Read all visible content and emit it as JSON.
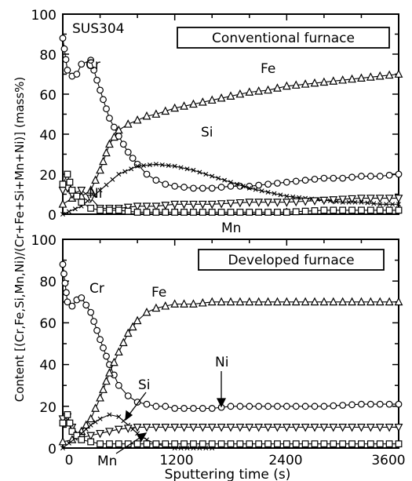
{
  "chart_data": [
    {
      "type": "line",
      "sample_label": "SUS304",
      "title": "Conventional furnace",
      "xlabel": "",
      "ylabel": "Content [(Cr,Fe,Si,Mn,Ni)/(Cr+Fe+Si+Mn+Ni)] (mass%)",
      "xlim": [
        0,
        3600
      ],
      "ylim": [
        0,
        100
      ],
      "yticks": [
        "0",
        "20",
        "40",
        "60",
        "80",
        "100"
      ],
      "series": [
        {
          "name": "Cr",
          "marker": "circle",
          "x": [
            0,
            50,
            100,
            150,
            200,
            300,
            400,
            500,
            600,
            700,
            800,
            900,
            1000,
            1100,
            1200,
            1400,
            1600,
            1800,
            2000,
            2200,
            2400,
            2600,
            2800,
            3000,
            3200,
            3400,
            3600
          ],
          "values": [
            88,
            72,
            69,
            70,
            75,
            77,
            62,
            48,
            39,
            31,
            25,
            20,
            17,
            15,
            14,
            13,
            13,
            14,
            14,
            15,
            16,
            17,
            18,
            18,
            19,
            19,
            20
          ]
        },
        {
          "name": "Fe",
          "marker": "triangle",
          "x": [
            0,
            100,
            200,
            300,
            400,
            500,
            600,
            700,
            800,
            900,
            1000,
            1200,
            1400,
            1600,
            1800,
            2000,
            2200,
            2400,
            2600,
            2800,
            3000,
            3200,
            3400,
            3600
          ],
          "values": [
            5,
            8,
            9,
            12,
            22,
            35,
            42,
            45,
            47,
            49,
            50,
            53,
            55,
            57,
            59,
            61,
            62,
            64,
            65,
            66,
            67,
            68,
            69,
            70
          ]
        },
        {
          "name": "Si",
          "marker": "cross",
          "x": [
            0,
            200,
            400,
            600,
            800,
            1000,
            1200,
            1400,
            1600,
            1800,
            2000,
            2200,
            2400,
            2600,
            2800,
            3000,
            3200,
            3400,
            3600
          ],
          "values": [
            0,
            4,
            12,
            20,
            24,
            25,
            24,
            22,
            19,
            16,
            13,
            11,
            9,
            8,
            7,
            6,
            6,
            5,
            5
          ]
        },
        {
          "name": "Ni",
          "marker": "inverted-triangle",
          "x": [
            0,
            50,
            100,
            200,
            300,
            400,
            600,
            800,
            1000,
            1200,
            1600,
            2000,
            2400,
            2800,
            3200,
            3600
          ],
          "values": [
            12,
            13,
            10,
            12,
            8,
            3,
            3,
            4,
            4,
            5,
            5,
            6,
            6,
            7,
            8,
            8
          ]
        },
        {
          "name": "Mn",
          "marker": "square",
          "x": [
            0,
            50,
            100,
            150,
            200,
            300,
            400,
            600,
            800,
            1000,
            1200,
            1600,
            2000,
            2400,
            2800,
            3200,
            3600
          ],
          "values": [
            15,
            20,
            12,
            9,
            6,
            3,
            2,
            2,
            1,
            1,
            1,
            1,
            1,
            1,
            2,
            2,
            2
          ]
        }
      ],
      "annotations": [
        "Cr",
        "Fe",
        "Si",
        "Ni",
        "Mn"
      ]
    },
    {
      "type": "line",
      "title": "Developed furnace",
      "xlabel": "Sputtering time (s)",
      "ylabel": "",
      "xlim": [
        0,
        3600
      ],
      "ylim": [
        0,
        100
      ],
      "xticks": [
        "0",
        "1200",
        "2400",
        "3600"
      ],
      "yticks": [
        "0",
        "20",
        "40",
        "60",
        "80",
        "100"
      ],
      "series": [
        {
          "name": "Cr",
          "marker": "circle",
          "x": [
            0,
            50,
            100,
            150,
            200,
            300,
            400,
            500,
            600,
            700,
            800,
            900,
            1000,
            1100,
            1200,
            1400,
            1600,
            1800,
            2000,
            2400,
            2800,
            3200,
            3600
          ],
          "values": [
            88,
            70,
            68,
            71,
            72,
            65,
            52,
            40,
            30,
            25,
            22,
            21,
            20,
            20,
            19,
            19,
            19,
            20,
            20,
            20,
            20,
            21,
            21
          ]
        },
        {
          "name": "Fe",
          "marker": "triangle",
          "x": [
            0,
            100,
            200,
            300,
            400,
            500,
            600,
            700,
            800,
            900,
            1000,
            1100,
            1200,
            1400,
            1600,
            1800,
            2000,
            2400,
            2800,
            3200,
            3600
          ],
          "values": [
            3,
            4,
            8,
            14,
            24,
            36,
            46,
            55,
            61,
            65,
            67,
            68,
            69,
            69,
            70,
            70,
            70,
            70,
            70,
            70,
            70
          ]
        },
        {
          "name": "Si",
          "marker": "cross",
          "x": [
            0,
            200,
            300,
            400,
            500,
            600,
            700,
            800,
            900,
            1000,
            1100,
            1200,
            1400,
            1600
          ],
          "values": [
            0,
            7,
            11,
            14,
            16,
            15,
            11,
            7,
            4,
            2,
            1,
            0,
            0,
            0
          ]
        },
        {
          "name": "Ni",
          "marker": "inverted-triangle",
          "x": [
            0,
            50,
            100,
            200,
            300,
            400,
            500,
            600,
            800,
            1000,
            1200,
            1600,
            2000,
            2400,
            2800,
            3200,
            3600
          ],
          "values": [
            14,
            15,
            10,
            5,
            6,
            7,
            8,
            9,
            10,
            10,
            10,
            10,
            10,
            10,
            10,
            10,
            10
          ]
        },
        {
          "name": "Mn",
          "marker": "square",
          "x": [
            0,
            50,
            100,
            150,
            200,
            300,
            400,
            600,
            800,
            1000,
            1200,
            1600,
            2000,
            2400,
            2800,
            3200,
            3600
          ],
          "values": [
            12,
            16,
            8,
            6,
            4,
            3,
            2,
            2,
            2,
            2,
            2,
            2,
            2,
            2,
            2,
            2,
            2
          ]
        }
      ],
      "annotations": [
        "Cr",
        "Fe",
        "Si",
        "Ni",
        "Mn"
      ]
    }
  ]
}
